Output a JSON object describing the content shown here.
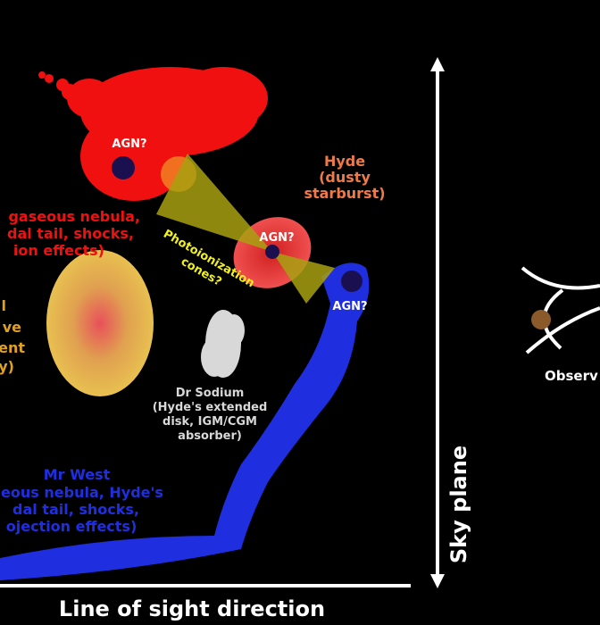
{
  "labels": {
    "agn": [
      "AGN?",
      "AGN?",
      "AGN?"
    ],
    "hyde": [
      "Hyde",
      "(dusty",
      "starburst)"
    ],
    "red_nebula": [
      "gaseous nebula,",
      "dal tail, shocks,",
      "ion effects)"
    ],
    "yellow_galaxy": [
      "l",
      "ve",
      "ent",
      "y)"
    ],
    "cones": [
      "Photoionization",
      "cones?"
    ],
    "dr_sodium": [
      "Dr Sodium",
      "(Hyde's extended",
      "disk, IGM/CGM",
      "absorber)"
    ],
    "mr_west": [
      "Mr West",
      "eous nebula, Hyde's",
      "dal tail, shocks,",
      "ojection effects)"
    ],
    "sky_plane": "Sky plane",
    "line_of_sight": "Line of sight direction",
    "observer": "Observ"
  }
}
